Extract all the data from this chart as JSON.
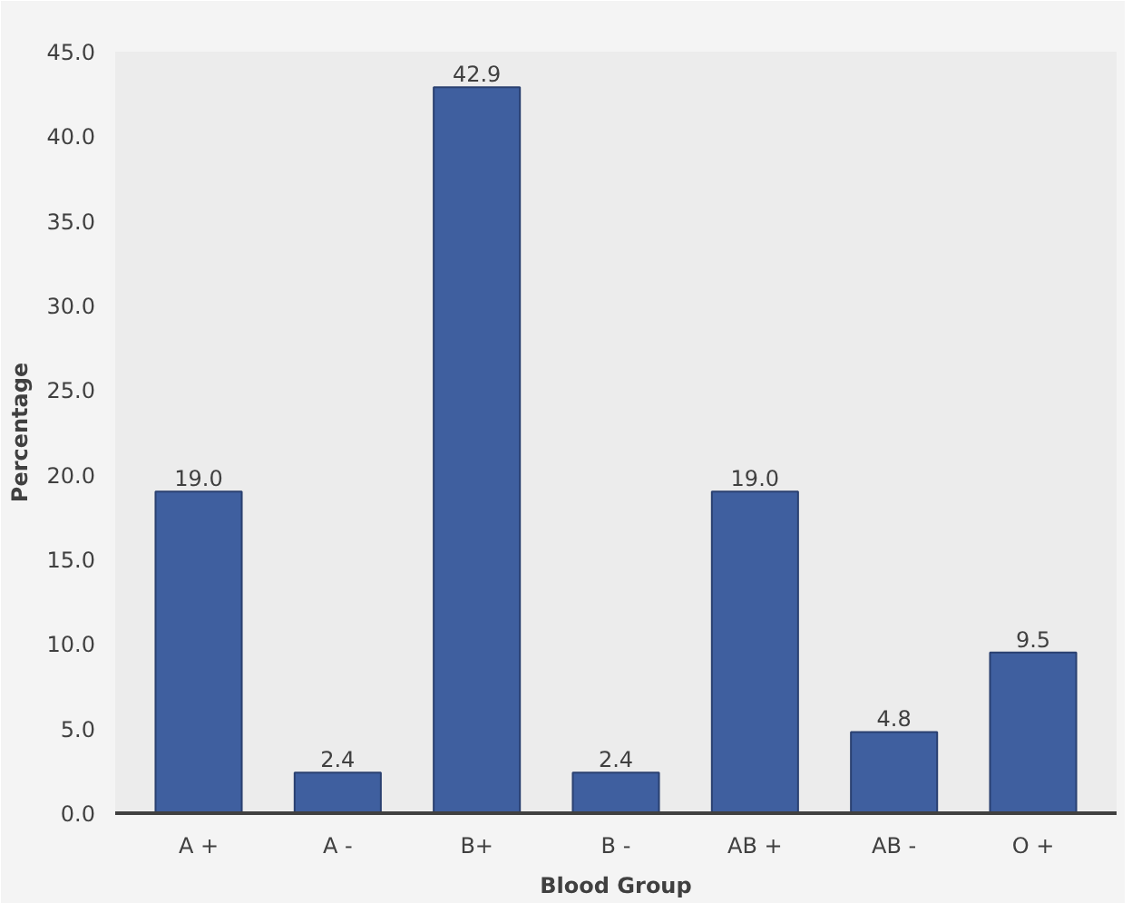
{
  "chart_data": {
    "type": "bar",
    "xlabel": "Blood Group",
    "ylabel": "Percentage",
    "categories": [
      "A +",
      "A -",
      "B+",
      "B -",
      "AB +",
      "AB -",
      "O +"
    ],
    "values": [
      19.0,
      2.4,
      42.9,
      2.4,
      19.0,
      4.8,
      9.5
    ],
    "value_labels": [
      "19.0",
      "2.4",
      "42.9",
      "2.4",
      "19.0",
      "4.8",
      "9.5"
    ],
    "color": "#3f5f9f",
    "ylim": [
      0,
      45
    ],
    "yticks": [
      {
        "value": 0,
        "label": "0.0"
      },
      {
        "value": 5,
        "label": "5.0"
      },
      {
        "value": 10,
        "label": "10.0"
      },
      {
        "value": 15,
        "label": "15.0"
      },
      {
        "value": 20,
        "label": "20.0"
      },
      {
        "value": 25,
        "label": "25.0"
      },
      {
        "value": 30,
        "label": "30.0"
      },
      {
        "value": 35,
        "label": "35.0"
      },
      {
        "value": 40,
        "label": "40.0"
      },
      {
        "value": 45,
        "label": "45.0"
      }
    ],
    "grid": false
  }
}
